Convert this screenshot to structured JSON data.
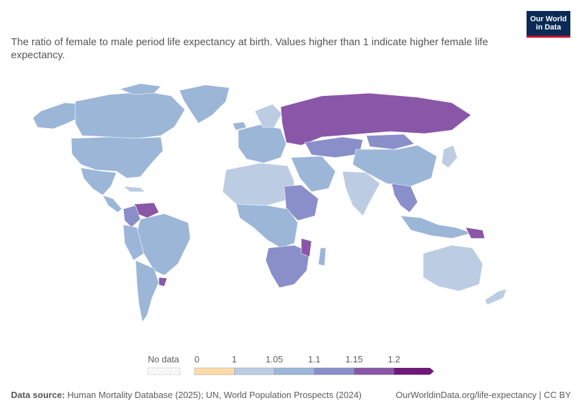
{
  "header": {
    "subtitle": "The ratio of female to male period life expectancy at birth. Values higher than 1 indicate higher female life expectancy.",
    "logo_line1": "Our World",
    "logo_line2": "in Data"
  },
  "legend": {
    "no_data_label": "No data",
    "tick_labels": [
      "0",
      "1",
      "1.05",
      "1.1",
      "1.15",
      "1.2"
    ],
    "bins": [
      {
        "from": "0",
        "to": "1",
        "color": "#fddcab"
      },
      {
        "from": "1",
        "to": "1.05",
        "color": "#bccde3"
      },
      {
        "from": "1.05",
        "to": "1.1",
        "color": "#9cb6d8"
      },
      {
        "from": "1.1",
        "to": "1.15",
        "color": "#8a8fca"
      },
      {
        "from": "1.15",
        "to": "1.2",
        "color": "#8a57a8"
      },
      {
        "from": "1.2",
        "to": "",
        "color": "#6f1a78"
      }
    ]
  },
  "map_colors": {
    "ocean": "#ffffff",
    "border": "#ffffff",
    "bin_1_105": "#bccde3",
    "bin_105_11": "#9cb6d8",
    "bin_11_115": "#8a8fca",
    "bin_115_12": "#8a57a8"
  },
  "footer": {
    "source_label": "Data source:",
    "source_text": "Human Mortality Database (2025); UN, World Population Prospects (2024)",
    "url_text": "OurWorldinData.org/life-expectancy | CC BY"
  }
}
